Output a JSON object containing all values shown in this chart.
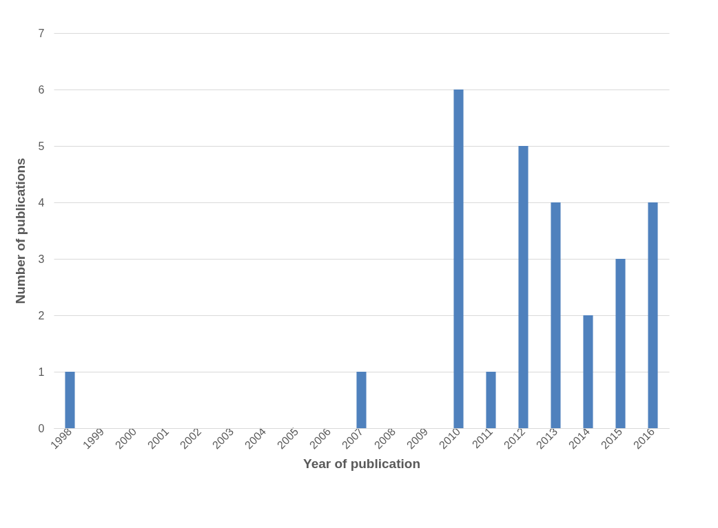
{
  "chart_data": {
    "type": "bar",
    "xlabel": "Year of publication",
    "ylabel": "Number of publications",
    "categories": [
      "1998",
      "1999",
      "2000",
      "2001",
      "2002",
      "2003",
      "2004",
      "2005",
      "2006",
      "2007",
      "2008",
      "2009",
      "2010",
      "2011",
      "2012",
      "2013",
      "2014",
      "2015",
      "2016"
    ],
    "series": [
      {
        "color": "#4f81bd",
        "values": [
          1,
          0,
          0,
          0,
          0,
          0,
          0,
          0,
          0,
          1,
          0,
          0,
          6,
          1,
          5,
          4,
          2,
          3,
          4
        ]
      }
    ],
    "ylim": [
      0,
      7
    ],
    "yticks": [
      0,
      1,
      2,
      3,
      4,
      5,
      6,
      7
    ],
    "grid": "y",
    "legend": false
  }
}
